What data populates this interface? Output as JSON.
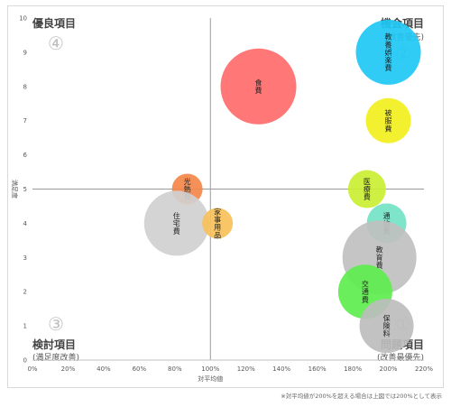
{
  "chart_data": {
    "type": "bubble",
    "xlabel": "対平均値",
    "ylabel": "満足度",
    "xlim": [
      0,
      220
    ],
    "ylim": [
      0,
      10
    ],
    "x_ticks": [
      "0%",
      "20%",
      "40%",
      "60%",
      "80%",
      "100%",
      "120%",
      "140%",
      "160%",
      "180%",
      "200%",
      "220%"
    ],
    "y_ticks": [
      "0",
      "1",
      "2",
      "3",
      "4",
      "5",
      "6",
      "7",
      "8",
      "9",
      "10"
    ],
    "reference_lines": {
      "x": 100,
      "y": 5
    },
    "quadrants": [
      {
        "id": "q4",
        "number": "④",
        "title": "優良項目",
        "subtitle": ""
      },
      {
        "id": "q2",
        "number": "②",
        "title": "機会項目",
        "subtitle": "(改善優先)"
      },
      {
        "id": "q3",
        "number": "③",
        "title": "検討項目",
        "subtitle": "(満足度改善)"
      },
      {
        "id": "q1",
        "number": "①",
        "title": "問題項目",
        "subtitle": "(改善最優先)"
      }
    ],
    "bubbles": [
      {
        "label": "食費",
        "x": 127,
        "y": 8.0,
        "size": 42,
        "color": "#ff6b6b"
      },
      {
        "label": "教養娯楽費",
        "x": 200,
        "y": 9.0,
        "size": 36,
        "color": "#1ec8f5"
      },
      {
        "label": "被服費",
        "x": 200,
        "y": 7.0,
        "size": 25,
        "color": "#f2ef1e"
      },
      {
        "label": "光熱費",
        "x": 87,
        "y": 5.0,
        "size": 17,
        "color": "#f4884a"
      },
      {
        "label": "医療費",
        "x": 188,
        "y": 5.0,
        "size": 21,
        "color": "#c9ef33"
      },
      {
        "label": "住宅費",
        "x": 81,
        "y": 4.0,
        "size": 36,
        "color": "#d0d0d0"
      },
      {
        "label": "家事用品",
        "x": 104,
        "y": 4.0,
        "size": 17,
        "color": "#f7c05a"
      },
      {
        "label": "通信費",
        "x": 199,
        "y": 4.0,
        "size": 22,
        "color": "#73e2c6"
      },
      {
        "label": "教育費",
        "x": 195,
        "y": 3.0,
        "size": 41,
        "color": "#c0c0c0"
      },
      {
        "label": "交通費",
        "x": 187,
        "y": 2.0,
        "size": 30,
        "color": "#5ded4d"
      },
      {
        "label": "保険料",
        "x": 199,
        "y": 1.0,
        "size": 30,
        "color": "#bdbdbd"
      }
    ]
  },
  "footnote": "※対平均値が200%を超える場合は上図では200%として表示"
}
